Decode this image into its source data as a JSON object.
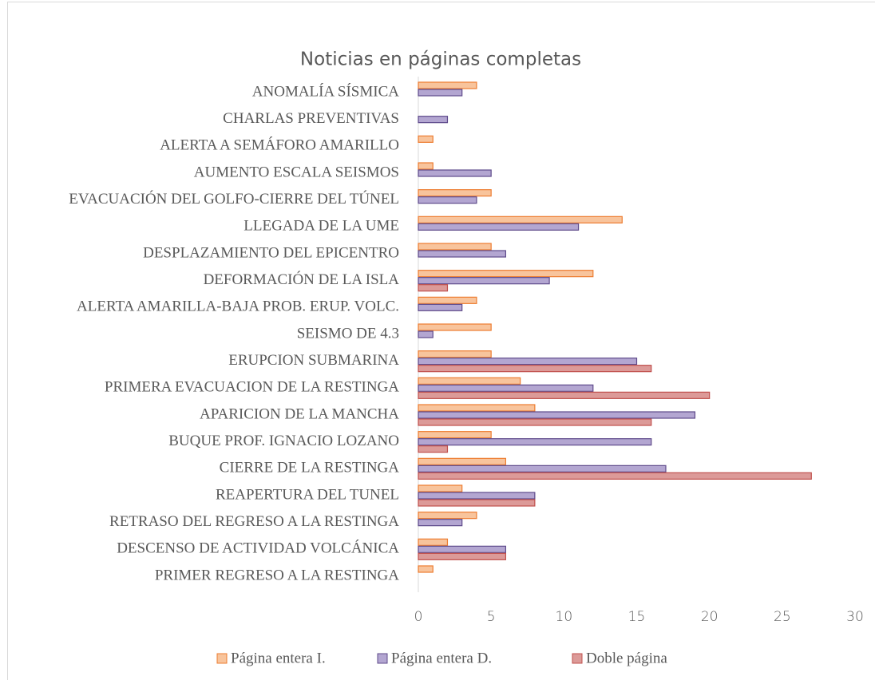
{
  "chart_data": {
    "type": "bar",
    "orientation": "horizontal",
    "title": "Noticias en páginas completas",
    "categories": [
      "ANOMALÍA SÍSMICA",
      "CHARLAS PREVENTIVAS",
      "ALERTA A SEMÁFORO AMARILLO",
      "AUMENTO ESCALA SEISMOS",
      "EVACUACIÓN DEL GOLFO-CIERRE DEL TÚNEL",
      "LLEGADA DE LA UME",
      "DESPLAZAMIENTO DEL EPICENTRO",
      "DEFORMACIÓN DE LA ISLA ",
      "ALERTA AMARILLA-BAJA PROB. ERUP. VOLC.",
      "SEISMO DE 4.3",
      "ERUPCION SUBMARINA",
      "PRIMERA EVACUACION DE LA RESTINGA",
      "APARICION DE LA MANCHA",
      "BUQUE PROF. IGNACIO LOZANO",
      "CIERRE DE LA RESTINGA",
      "REAPERTURA DEL TUNEL",
      "RETRASO DEL REGRESO A LA RESTINGA",
      "DESCENSO DE ACTIVIDAD VOLCÁNICA",
      "PRIMER REGRESO A LA RESTINGA"
    ],
    "series": [
      {
        "name": "Página entera I.",
        "color": "#f8c49c",
        "edge": "#ed7d31",
        "values": [
          4,
          0,
          1,
          1,
          5,
          14,
          5,
          12,
          4,
          5,
          5,
          7,
          8,
          5,
          6,
          3,
          4,
          2,
          1
        ]
      },
      {
        "name": "Página entera D.",
        "color": "#b3a6d1",
        "edge": "#5f4b8b",
        "values": [
          3,
          2,
          0,
          5,
          4,
          11,
          6,
          9,
          3,
          1,
          15,
          12,
          19,
          16,
          17,
          8,
          3,
          6,
          0
        ]
      },
      {
        "name": "Doble página",
        "color": "#dc9a98",
        "edge": "#c0504d",
        "values": [
          0,
          0,
          0,
          0,
          0,
          0,
          0,
          2,
          0,
          0,
          16,
          20,
          16,
          2,
          27,
          8,
          0,
          6,
          0
        ]
      }
    ],
    "xlim": [
      0,
      30
    ],
    "xticks": [
      0,
      5,
      10,
      15,
      20,
      25,
      30
    ],
    "legend": "bottom"
  }
}
